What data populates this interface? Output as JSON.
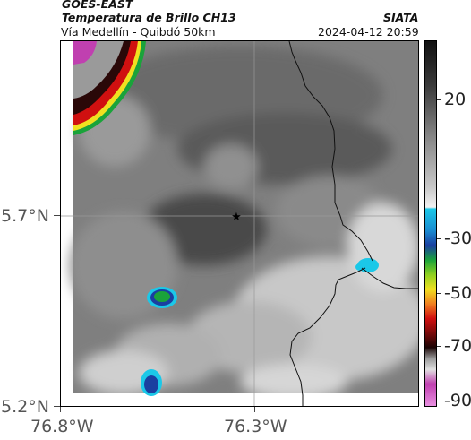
{
  "header": {
    "satellite": "GOES-EAST",
    "product": "Temperatura de Brillo CH13",
    "org": "SIATA",
    "route": "Vía Medellín - Quibdó 50km",
    "datetime": "2024-04-12 20:59"
  },
  "axes": {
    "y_ticks": [
      {
        "label": "5.7°N",
        "value": 5.7
      },
      {
        "label": "5.2°N",
        "value": 5.2
      }
    ],
    "x_ticks": [
      {
        "label": "76.8°W",
        "value": -76.8
      },
      {
        "label": "76.3°W",
        "value": -76.3
      }
    ]
  },
  "colorbar": {
    "ticks": [
      {
        "label": "20",
        "value": 20
      },
      {
        "label": "-30",
        "value": -30
      },
      {
        "label": "-50",
        "value": -50
      },
      {
        "label": "-70",
        "value": -70
      },
      {
        "label": "-90",
        "value": -90
      }
    ]
  },
  "map": {
    "marker_icon": "star-icon",
    "marker_lon": -76.33,
    "marker_lat": 5.7,
    "colors": {
      "dark_gray": "#3a3a3a",
      "mid_gray": "#808080",
      "light_gray": "#dcdcdc",
      "cold_cyan": "#1bc8e8",
      "cold_blue": "#1a3fa0",
      "cold_green": "#1aa33a",
      "storm_red": "#d01010",
      "storm_yellow": "#f0e020",
      "storm_magenta": "#c040b0"
    }
  }
}
